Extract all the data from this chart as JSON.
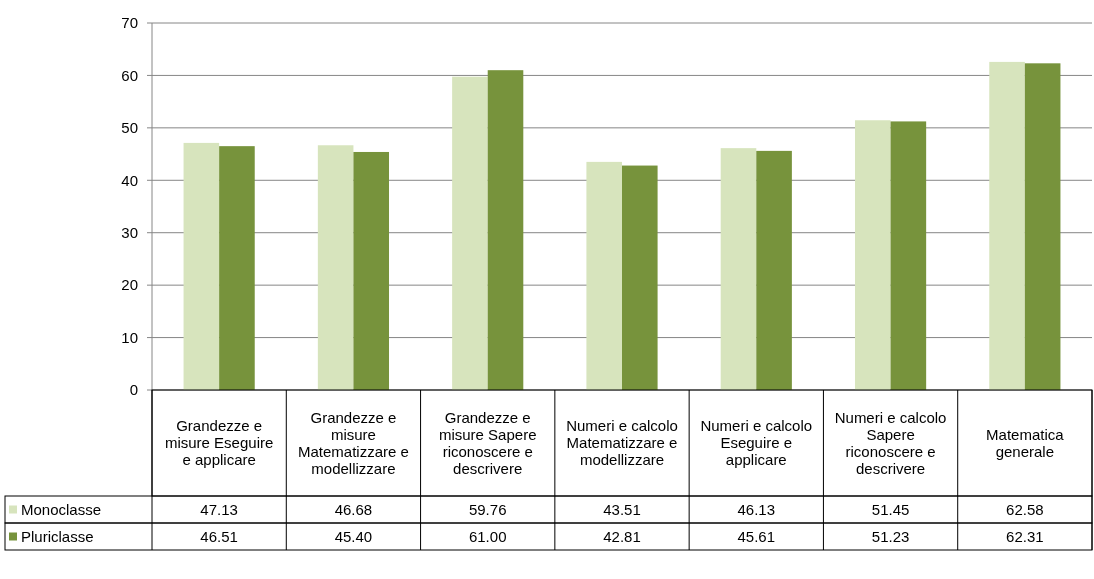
{
  "chart_data": {
    "type": "bar",
    "categories": [
      "Grandezze e misure Eseguire e applicare",
      "Grandezze e misure Matematizzare e modellizzare",
      "Grandezze e misure Sapere riconoscere e descrivere",
      "Numeri e calcolo Matematizzare e modellizzare",
      "Numeri e calcolo Eseguire e applicare",
      "Numeri e calcolo Sapere riconoscere e descrivere",
      "Matematica generale"
    ],
    "series": [
      {
        "name": "Monoclasse",
        "color": "#d7e4bd",
        "values": [
          47.13,
          46.68,
          59.76,
          43.51,
          46.13,
          51.45,
          62.58
        ],
        "value_labels": [
          "47.13",
          "46.68",
          "59.76",
          "43.51",
          "46.13",
          "51.45",
          "62.58"
        ]
      },
      {
        "name": "Pluriclasse",
        "color": "#77933c",
        "values": [
          46.51,
          45.4,
          61.0,
          42.81,
          45.61,
          51.23,
          62.31
        ],
        "value_labels": [
          "46.51",
          "45.40",
          "61.00",
          "42.81",
          "45.61",
          "51.23",
          "62.31"
        ]
      }
    ],
    "ylim": [
      0,
      70
    ],
    "yticks": [
      0,
      10,
      20,
      30,
      40,
      50,
      60,
      70
    ],
    "grid": "y",
    "legend": "bottom left"
  }
}
